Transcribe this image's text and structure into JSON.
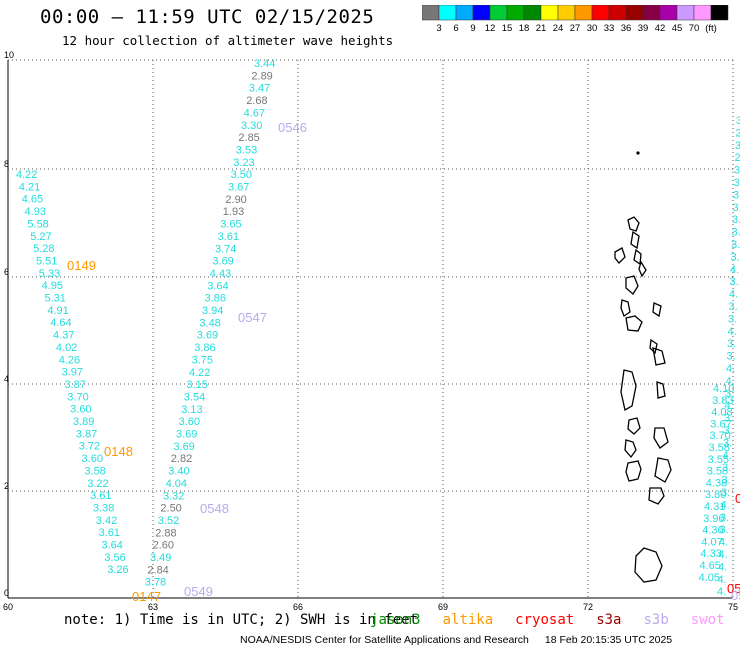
{
  "header": {
    "title": "00:00 – 11:59 UTC 02/15/2025",
    "subtitle": "12 hour collection of altimeter wave heights"
  },
  "colorbar": {
    "colors": [
      "#777777",
      "#00ffff",
      "#00aaff",
      "#0000ff",
      "#00cc33",
      "#00aa00",
      "#008800",
      "#ffff00",
      "#ffcc00",
      "#ff9900",
      "#ff0000",
      "#cc0000",
      "#990000",
      "#880044",
      "#aa00aa",
      "#cc99ff",
      "#ff99ff",
      "#000000"
    ],
    "labels": [
      "3",
      "6",
      "9",
      "12",
      "15",
      "18",
      "21",
      "24",
      "27",
      "30",
      "33",
      "36",
      "39",
      "42",
      "45",
      "70",
      "(ft)"
    ]
  },
  "axes": {
    "x_ticks": [
      "60",
      "63",
      "66",
      "69",
      "72",
      "75"
    ],
    "y_ticks": [
      "0",
      "2",
      "4",
      "6",
      "8",
      "10"
    ]
  },
  "tracks": {
    "track_a": {
      "color": "#22dddd",
      "values": [
        "4.22",
        "4.21",
        "4.65",
        "4.93",
        "5.58",
        "5.27",
        "5.28",
        "5.51",
        "5.33",
        "4.95",
        "5.31",
        "4.91",
        "4.64",
        "4.37",
        "4.02",
        "4.26",
        "3.97",
        "3.87",
        "3.70",
        "3.60",
        "3.89",
        "3.87",
        "3.72",
        "3.60",
        "3.58",
        "3.22",
        "3.61",
        "3.38",
        "3.42",
        "3.61",
        "3.64",
        "3.56",
        "3.26"
      ]
    },
    "track_b": {
      "values": [
        {
          "v": "3.44",
          "c": "#22dddd"
        },
        {
          "v": "2.89",
          "c": "#777777"
        },
        {
          "v": "3.47",
          "c": "#22dddd"
        },
        {
          "v": "2.68",
          "c": "#777777"
        },
        {
          "v": "4.67",
          "c": "#22dddd"
        },
        {
          "v": "3.30",
          "c": "#22dddd"
        },
        {
          "v": "2.85",
          "c": "#777777"
        },
        {
          "v": "3.53",
          "c": "#22dddd"
        },
        {
          "v": "3.23",
          "c": "#22dddd"
        },
        {
          "v": "3.50",
          "c": "#22dddd"
        },
        {
          "v": "3.67",
          "c": "#22dddd"
        },
        {
          "v": "2.90",
          "c": "#777777"
        },
        {
          "v": "1.93",
          "c": "#777777"
        },
        {
          "v": "3.65",
          "c": "#22dddd"
        },
        {
          "v": "3.61",
          "c": "#22dddd"
        },
        {
          "v": "3.74",
          "c": "#22dddd"
        },
        {
          "v": "3.69",
          "c": "#22dddd"
        },
        {
          "v": "4.43",
          "c": "#22dddd"
        },
        {
          "v": "3.64",
          "c": "#22dddd"
        },
        {
          "v": "3.86",
          "c": "#22dddd"
        },
        {
          "v": "3.94",
          "c": "#22dddd"
        },
        {
          "v": "3.48",
          "c": "#22dddd"
        },
        {
          "v": "3.69",
          "c": "#22dddd"
        },
        {
          "v": "3.86",
          "c": "#22dddd"
        },
        {
          "v": "3.75",
          "c": "#22dddd"
        },
        {
          "v": "4.22",
          "c": "#22dddd"
        },
        {
          "v": "3.15",
          "c": "#22dddd"
        },
        {
          "v": "3.54",
          "c": "#22dddd"
        },
        {
          "v": "3.13",
          "c": "#22dddd"
        },
        {
          "v": "3.60",
          "c": "#22dddd"
        },
        {
          "v": "3.69",
          "c": "#22dddd"
        },
        {
          "v": "3.69",
          "c": "#22dddd"
        },
        {
          "v": "2.82",
          "c": "#777777"
        },
        {
          "v": "3.40",
          "c": "#22dddd"
        },
        {
          "v": "4.04",
          "c": "#22dddd"
        },
        {
          "v": "3.32",
          "c": "#22dddd"
        },
        {
          "v": "2.50",
          "c": "#777777"
        },
        {
          "v": "3.52",
          "c": "#22dddd"
        },
        {
          "v": "2.88",
          "c": "#777777"
        },
        {
          "v": "2.60",
          "c": "#777777"
        },
        {
          "v": "3.49",
          "c": "#22dddd"
        },
        {
          "v": "2.84",
          "c": "#777777"
        },
        {
          "v": "3.78",
          "c": "#22dddd"
        }
      ]
    },
    "track_c": {
      "color": "#22dddd",
      "values": [
        "3.",
        "2.",
        "3.",
        "2.",
        "3.",
        "3.",
        "3.",
        "3.",
        "3.",
        "3.",
        "3.",
        "3.",
        "4.",
        "3.",
        "4.",
        "3.",
        "3.",
        "4.",
        "3.",
        "3.",
        "4.",
        "4.",
        "3.",
        "4.",
        "3.",
        "3.",
        "3.",
        "4.",
        "3.",
        "3.",
        "3.",
        "4.",
        "3.",
        "3.",
        "4.",
        "4.",
        "4.",
        "4.",
        "4."
      ]
    },
    "track_c_stacked": {
      "color": "#22dddd",
      "values": [
        "4.10",
        "3.83",
        "4.08",
        "3.67",
        "3.70",
        "3.58",
        "3.55",
        "3.58",
        "4.38",
        "3.80",
        "4.31",
        "3.96",
        "4.36",
        "4.07",
        "4.33",
        "4.65",
        "4.05"
      ]
    },
    "time_labels": [
      {
        "t": "0149",
        "c": "#ff9900"
      },
      {
        "t": "0148",
        "c": "#ff9900"
      },
      {
        "t": "0147",
        "c": "#ff9900"
      },
      {
        "t": "0546",
        "c": "#bbaaee"
      },
      {
        "t": "0547",
        "c": "#bbaaee"
      },
      {
        "t": "0548",
        "c": "#bbaaee"
      },
      {
        "t": "0549",
        "c": "#bbaaee"
      },
      {
        "t": "05",
        "c": "#ff0000"
      },
      {
        "t": "05",
        "c": "#bbaaee"
      },
      {
        "t": "0",
        "c": "#ff0000"
      }
    ]
  },
  "footer": {
    "note": "note: 1) Time is in UTC; 2) SWH is in feet",
    "satellites": [
      {
        "name": "jason3",
        "color": "#008800"
      },
      {
        "name": "altika",
        "color": "#ff9900"
      },
      {
        "name": "cryosat",
        "color": "#ff0000"
      },
      {
        "name": "s3a",
        "color": "#990000"
      },
      {
        "name": "s3b",
        "color": "#bbaaee"
      },
      {
        "name": "swot",
        "color": "#ff99ff"
      }
    ],
    "credit": "NOAA/NESDIS Center for Satellite Applications and Research",
    "timestamp": "18 Feb 20:15:35 UTC 2025"
  }
}
